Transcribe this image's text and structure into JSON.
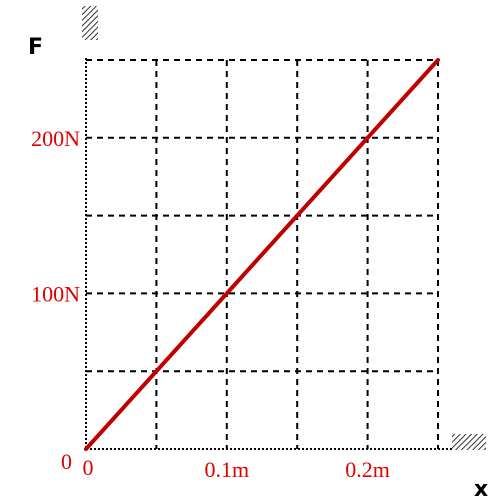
{
  "chart_data": {
    "type": "line",
    "xlabel": "x",
    "ylabel": "F",
    "xlim": [
      0,
      0.25
    ],
    "ylim": [
      0,
      250
    ],
    "grid": true,
    "x_grid_step": 0.05,
    "y_grid_step": 50,
    "x_tick_labels": [
      {
        "value": 0,
        "label": "0"
      },
      {
        "value": 0.1,
        "label": "0.1m"
      },
      {
        "value": 0.2,
        "label": "0.2m"
      }
    ],
    "y_tick_labels": [
      {
        "value": 0,
        "label": "0"
      },
      {
        "value": 100,
        "label": "100N"
      },
      {
        "value": 200,
        "label": "200N"
      }
    ],
    "series": [
      {
        "x": [
          0,
          0.25
        ],
        "y": [
          0,
          250
        ],
        "color": "#c00000"
      }
    ],
    "colors": {
      "line": "#c00000",
      "tick_labels": "#e00000",
      "grid": "#000000",
      "axis": "#000000"
    }
  }
}
